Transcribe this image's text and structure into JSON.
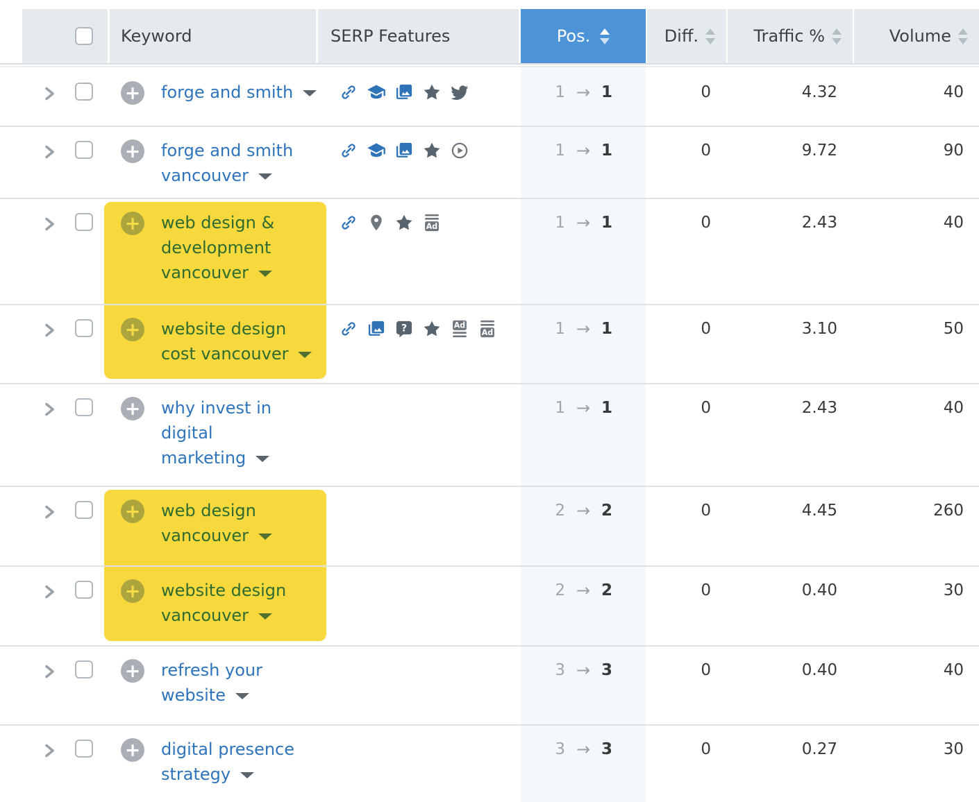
{
  "header": {
    "sorted_by": "Pos.",
    "columns": [
      {
        "id": "select",
        "label": "",
        "sortable": false
      },
      {
        "id": "keyword",
        "label": "Keyword",
        "sortable": false
      },
      {
        "id": "serp",
        "label": "SERP Features",
        "sortable": false
      },
      {
        "id": "pos",
        "label": "Pos.",
        "sortable": true,
        "active_sort": true
      },
      {
        "id": "diff",
        "label": "Diff.",
        "sortable": true,
        "active_sort": false
      },
      {
        "id": "traffic",
        "label": "Traffic %",
        "sortable": true,
        "active_sort": false
      },
      {
        "id": "volume",
        "label": "Volume",
        "sortable": true,
        "active_sort": false
      }
    ]
  },
  "glyphs": {
    "plus": "+",
    "pos_change_arrow": "→"
  },
  "serp_feature_icons": {
    "link": "chain-link",
    "knowledge-graph": "graduation-cap",
    "images": "image-pack",
    "reviews": "star",
    "twitter": "twitter-bird",
    "video": "play-circle",
    "local-pack": "map-pin",
    "faq": "question-bubble",
    "ads-top": "ad-box-lines-above",
    "ads-bottom": "ad-box-lines-below"
  },
  "rows": [
    {
      "keyword_lines": [
        "forge and smith"
      ],
      "highlighted": false,
      "serp_features": [
        "link",
        "knowledge-graph",
        "images",
        "reviews",
        "twitter"
      ],
      "pos_before": "1",
      "pos_after": "1",
      "diff": "0",
      "traffic_pct": "4.32",
      "volume": "40"
    },
    {
      "keyword_lines": [
        "forge and smith",
        "vancouver"
      ],
      "highlighted": false,
      "serp_features": [
        "link",
        "knowledge-graph",
        "images",
        "reviews",
        "video"
      ],
      "pos_before": "1",
      "pos_after": "1",
      "diff": "0",
      "traffic_pct": "9.72",
      "volume": "90"
    },
    {
      "keyword_lines": [
        "web design &",
        "development",
        "vancouver"
      ],
      "highlighted": true,
      "serp_features": [
        "link",
        "local-pack",
        "reviews",
        "ads-top"
      ],
      "pos_before": "1",
      "pos_after": "1",
      "diff": "0",
      "traffic_pct": "2.43",
      "volume": "40"
    },
    {
      "keyword_lines": [
        "website design",
        "cost vancouver"
      ],
      "highlighted": true,
      "serp_features": [
        "link",
        "images",
        "faq",
        "reviews",
        "ads-bottom",
        "ads-top"
      ],
      "pos_before": "1",
      "pos_after": "1",
      "diff": "0",
      "traffic_pct": "3.10",
      "volume": "50"
    },
    {
      "keyword_lines": [
        "why invest in",
        "digital",
        "marketing"
      ],
      "highlighted": false,
      "serp_features": [],
      "pos_before": "1",
      "pos_after": "1",
      "diff": "0",
      "traffic_pct": "2.43",
      "volume": "40"
    },
    {
      "keyword_lines": [
        "web design",
        "vancouver"
      ],
      "highlighted": true,
      "serp_features": [],
      "pos_before": "2",
      "pos_after": "2",
      "diff": "0",
      "traffic_pct": "4.45",
      "volume": "260"
    },
    {
      "keyword_lines": [
        "website design",
        "vancouver"
      ],
      "highlighted": true,
      "serp_features": [],
      "pos_before": "2",
      "pos_after": "2",
      "diff": "0",
      "traffic_pct": "0.40",
      "volume": "30"
    },
    {
      "keyword_lines": [
        "refresh your",
        "website"
      ],
      "highlighted": false,
      "serp_features": [],
      "pos_before": "3",
      "pos_after": "3",
      "diff": "0",
      "traffic_pct": "0.40",
      "volume": "40"
    },
    {
      "keyword_lines": [
        "digital presence",
        "strategy"
      ],
      "highlighted": false,
      "serp_features": [],
      "pos_before": "3",
      "pos_after": "3",
      "diff": "0",
      "traffic_pct": "0.27",
      "volume": "30"
    }
  ],
  "colors": {
    "header_bg": "#E5EAEC",
    "header_text": "#3C4145",
    "accent_blue": "#4C94D7",
    "keyword_blue": "#2E74BC",
    "highlight_yellow": "#F7D93E",
    "highlight_green": "#2F6B30",
    "pos_tint": "#F3F8FA",
    "icon_blue": "#2E72B8",
    "icon_gray": "#57646E",
    "icon_gray_light": "#6E767C",
    "divider": "#DFE3E5",
    "number_text": "#37393B",
    "muted_pos": "#A0A7AC",
    "chevron_gray": "#9AA3A9",
    "checkbox_border": "#B1B8BD",
    "plus_circle_gray": "#A9AFB4",
    "plus_circle_olive": "#ACA53E",
    "plus_glyph_on_olive": "#F7DC47",
    "caret_gray": "#5A646C",
    "caret_green": "#527030"
  }
}
